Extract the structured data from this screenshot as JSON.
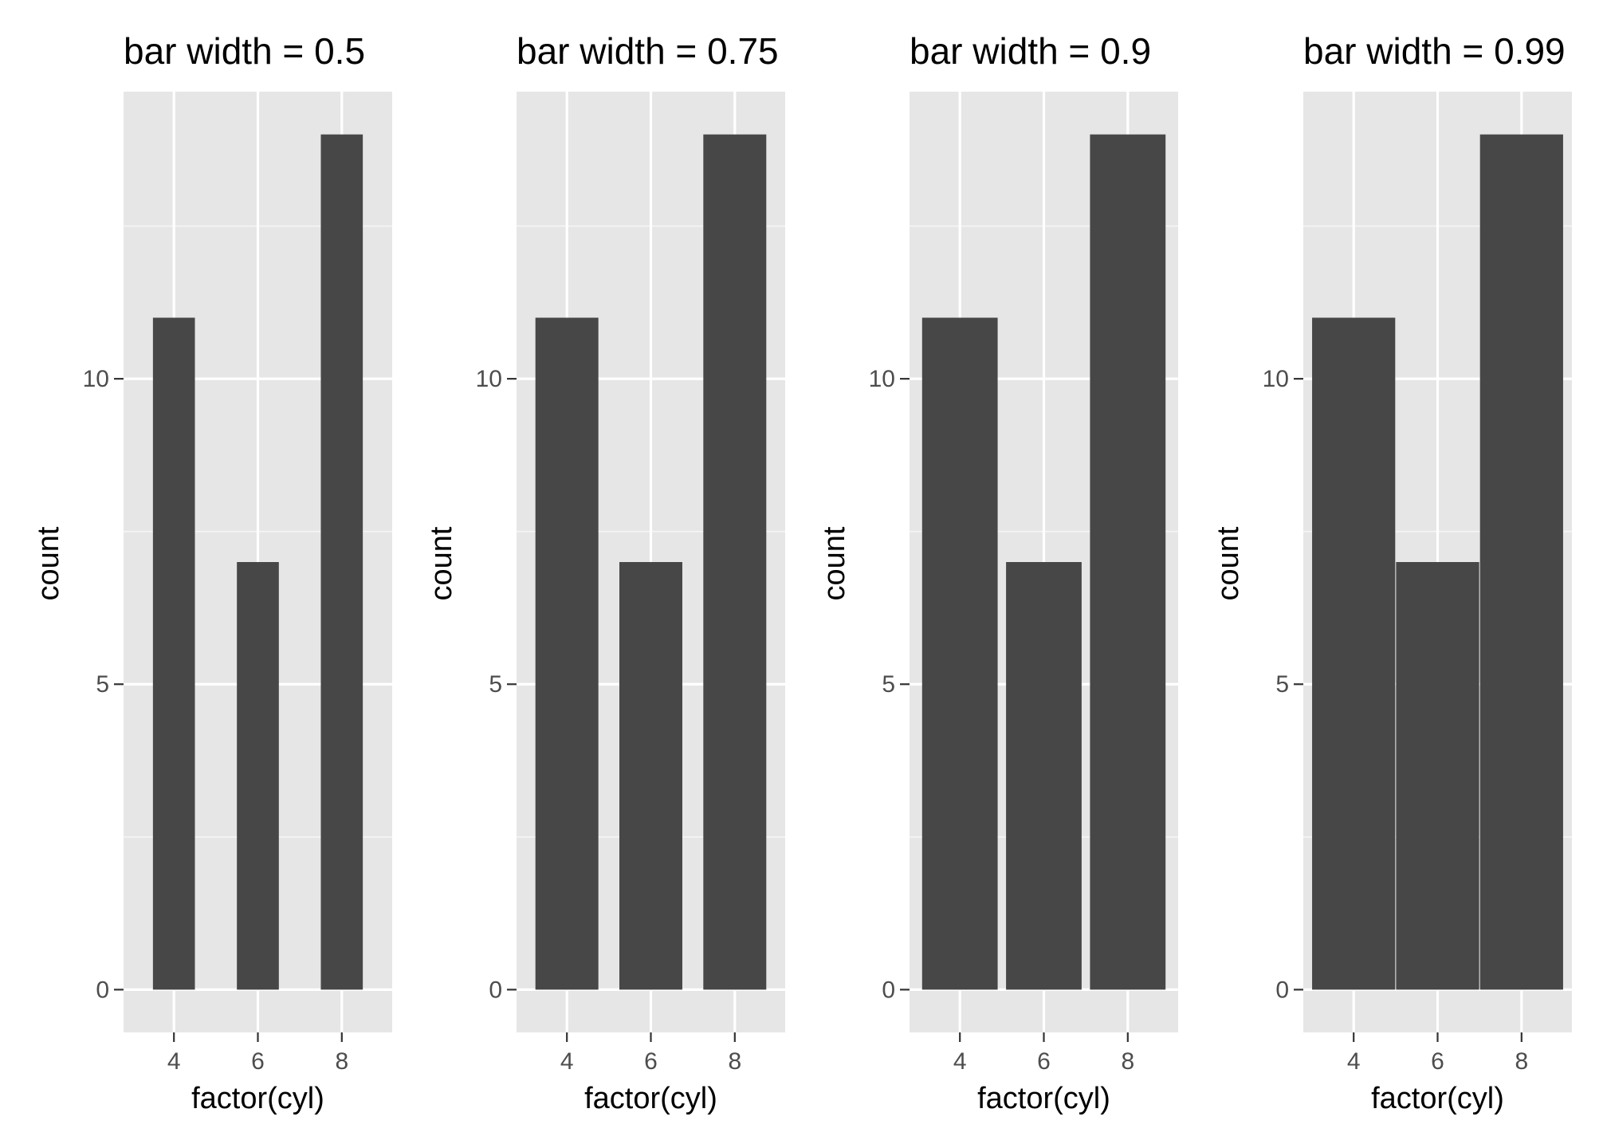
{
  "chart_data": [
    {
      "type": "bar",
      "title": "bar width = 0.5",
      "xlabel": "factor(cyl)",
      "ylabel": "count",
      "categories": [
        "4",
        "6",
        "8"
      ],
      "values": [
        11,
        7,
        14
      ],
      "bar_width": 0.5,
      "y_ticks": [
        0,
        5,
        10
      ],
      "ylim": [
        -0.7,
        14.7
      ],
      "grid": true
    },
    {
      "type": "bar",
      "title": "bar width = 0.75",
      "xlabel": "factor(cyl)",
      "ylabel": "count",
      "categories": [
        "4",
        "6",
        "8"
      ],
      "values": [
        11,
        7,
        14
      ],
      "bar_width": 0.75,
      "y_ticks": [
        0,
        5,
        10
      ],
      "ylim": [
        -0.7,
        14.7
      ],
      "grid": true
    },
    {
      "type": "bar",
      "title": "bar width = 0.9",
      "xlabel": "factor(cyl)",
      "ylabel": "count",
      "categories": [
        "4",
        "6",
        "8"
      ],
      "values": [
        11,
        7,
        14
      ],
      "bar_width": 0.9,
      "y_ticks": [
        0,
        5,
        10
      ],
      "ylim": [
        -0.7,
        14.7
      ],
      "grid": true
    },
    {
      "type": "bar",
      "title": "bar width = 0.99",
      "xlabel": "factor(cyl)",
      "ylabel": "count",
      "categories": [
        "4",
        "6",
        "8"
      ],
      "values": [
        11,
        7,
        14
      ],
      "bar_width": 0.99,
      "y_ticks": [
        0,
        5,
        10
      ],
      "ylim": [
        -0.7,
        14.7
      ],
      "grid": true
    }
  ],
  "colors": {
    "panel_background": "#e6e6e6",
    "bar_fill": "#474747",
    "grid_major": "#ffffff",
    "grid_minor": "#f5f5f5"
  }
}
